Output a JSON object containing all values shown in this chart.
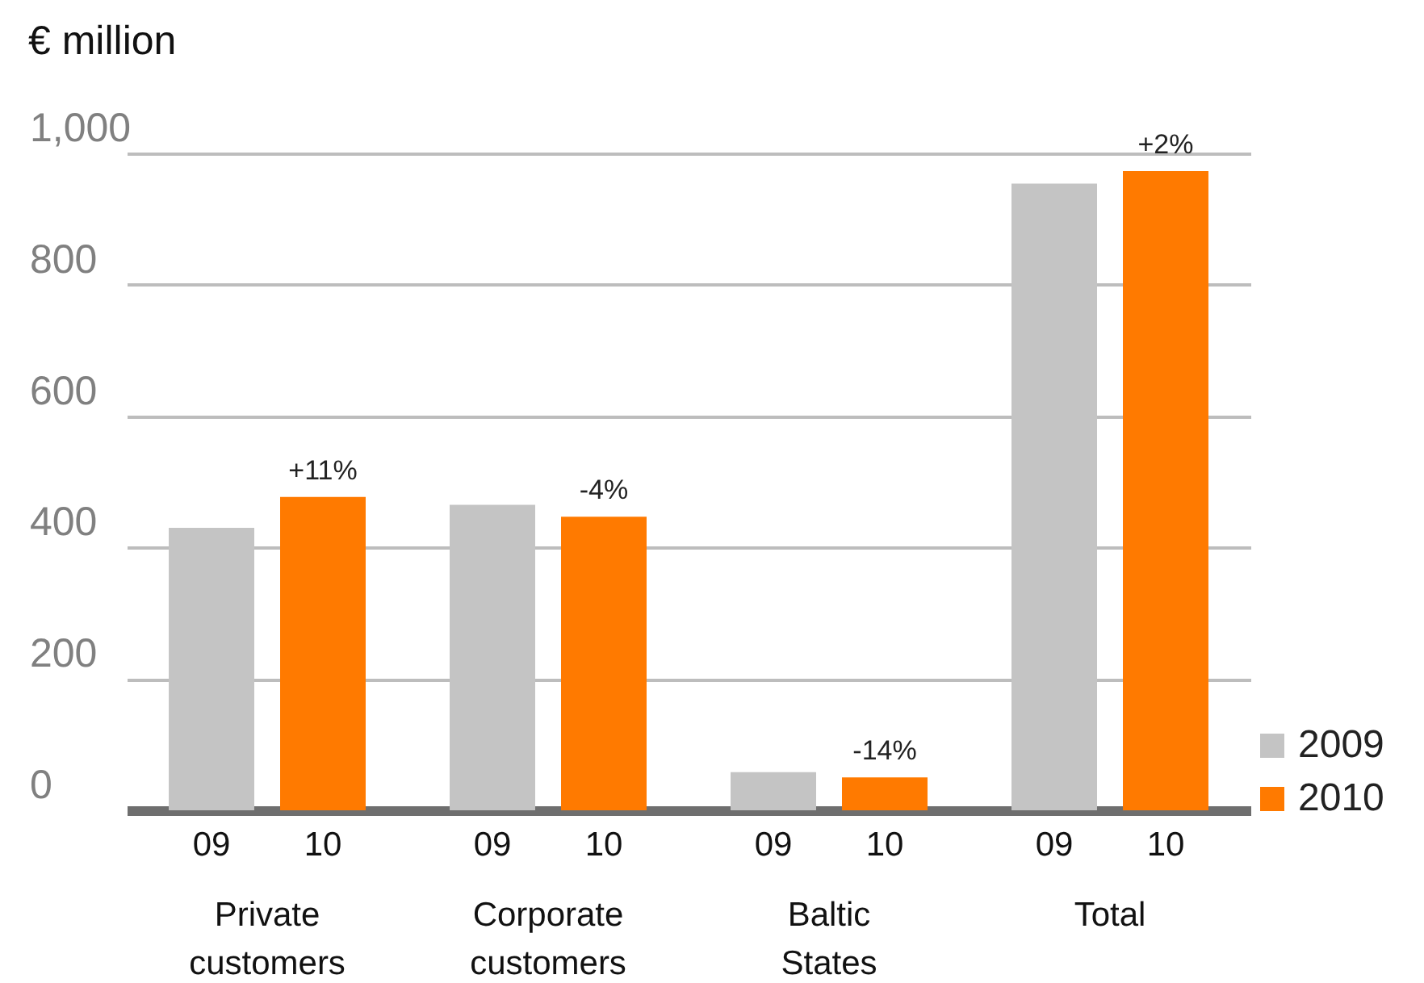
{
  "chart_data": {
    "type": "bar",
    "ylabel": "€ million",
    "categories": [
      "Private customers",
      "Corporate customers",
      "Baltic States",
      "Total"
    ],
    "series": [
      {
        "name": "2009",
        "color": "#c4c4c4",
        "values": [
          430,
          465,
          58,
          954
        ]
      },
      {
        "name": "2010",
        "color": "#ff7a00",
        "values": [
          477,
          447,
          50,
          973
        ]
      }
    ],
    "ylim": [
      0,
      1000
    ],
    "yticks": [
      0,
      200,
      400,
      600,
      800,
      {
        "value": 1000,
        "label": "1,000"
      }
    ],
    "grid": "y",
    "legend": "bottom right",
    "annotations": [
      "09",
      "10",
      "09",
      "10",
      "09",
      "10",
      "09",
      "10",
      "+11%",
      "-4%",
      "-14%",
      "+2%"
    ]
  }
}
